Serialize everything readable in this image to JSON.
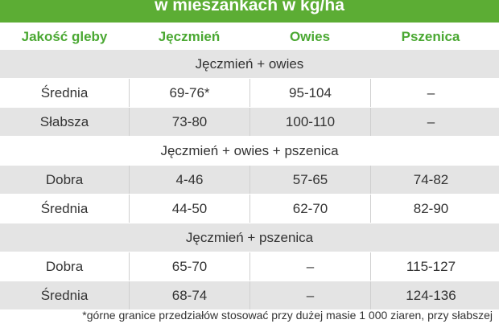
{
  "header": {
    "title": "w mieszankach w kg/ha"
  },
  "table": {
    "columns": [
      "Jakość gleby",
      "Jęczmień",
      "Owies",
      "Pszenica"
    ],
    "groups": [
      {
        "title": "Jęczmień + owies",
        "rows": [
          [
            "Średnia",
            "69-76*",
            "95-104",
            "–"
          ],
          [
            "Słabsza",
            "73-80",
            "100-110",
            "–"
          ]
        ]
      },
      {
        "title": "Jęczmień + owies + pszenica",
        "rows": [
          [
            "Dobra",
            "4-46",
            "57-65",
            "74-82"
          ],
          [
            "Średnia",
            "44-50",
            "62-70",
            "82-90"
          ]
        ]
      },
      {
        "title": "Jęczmień + pszenica",
        "rows": [
          [
            "Dobra",
            "65-70",
            "–",
            "115-127"
          ],
          [
            "Średnia",
            "68-74",
            "–",
            "124-136"
          ]
        ]
      }
    ]
  },
  "footnote": "*górne granice przedziałów stosować przy dużej masie 1 000 ziaren, przy słabszej"
}
